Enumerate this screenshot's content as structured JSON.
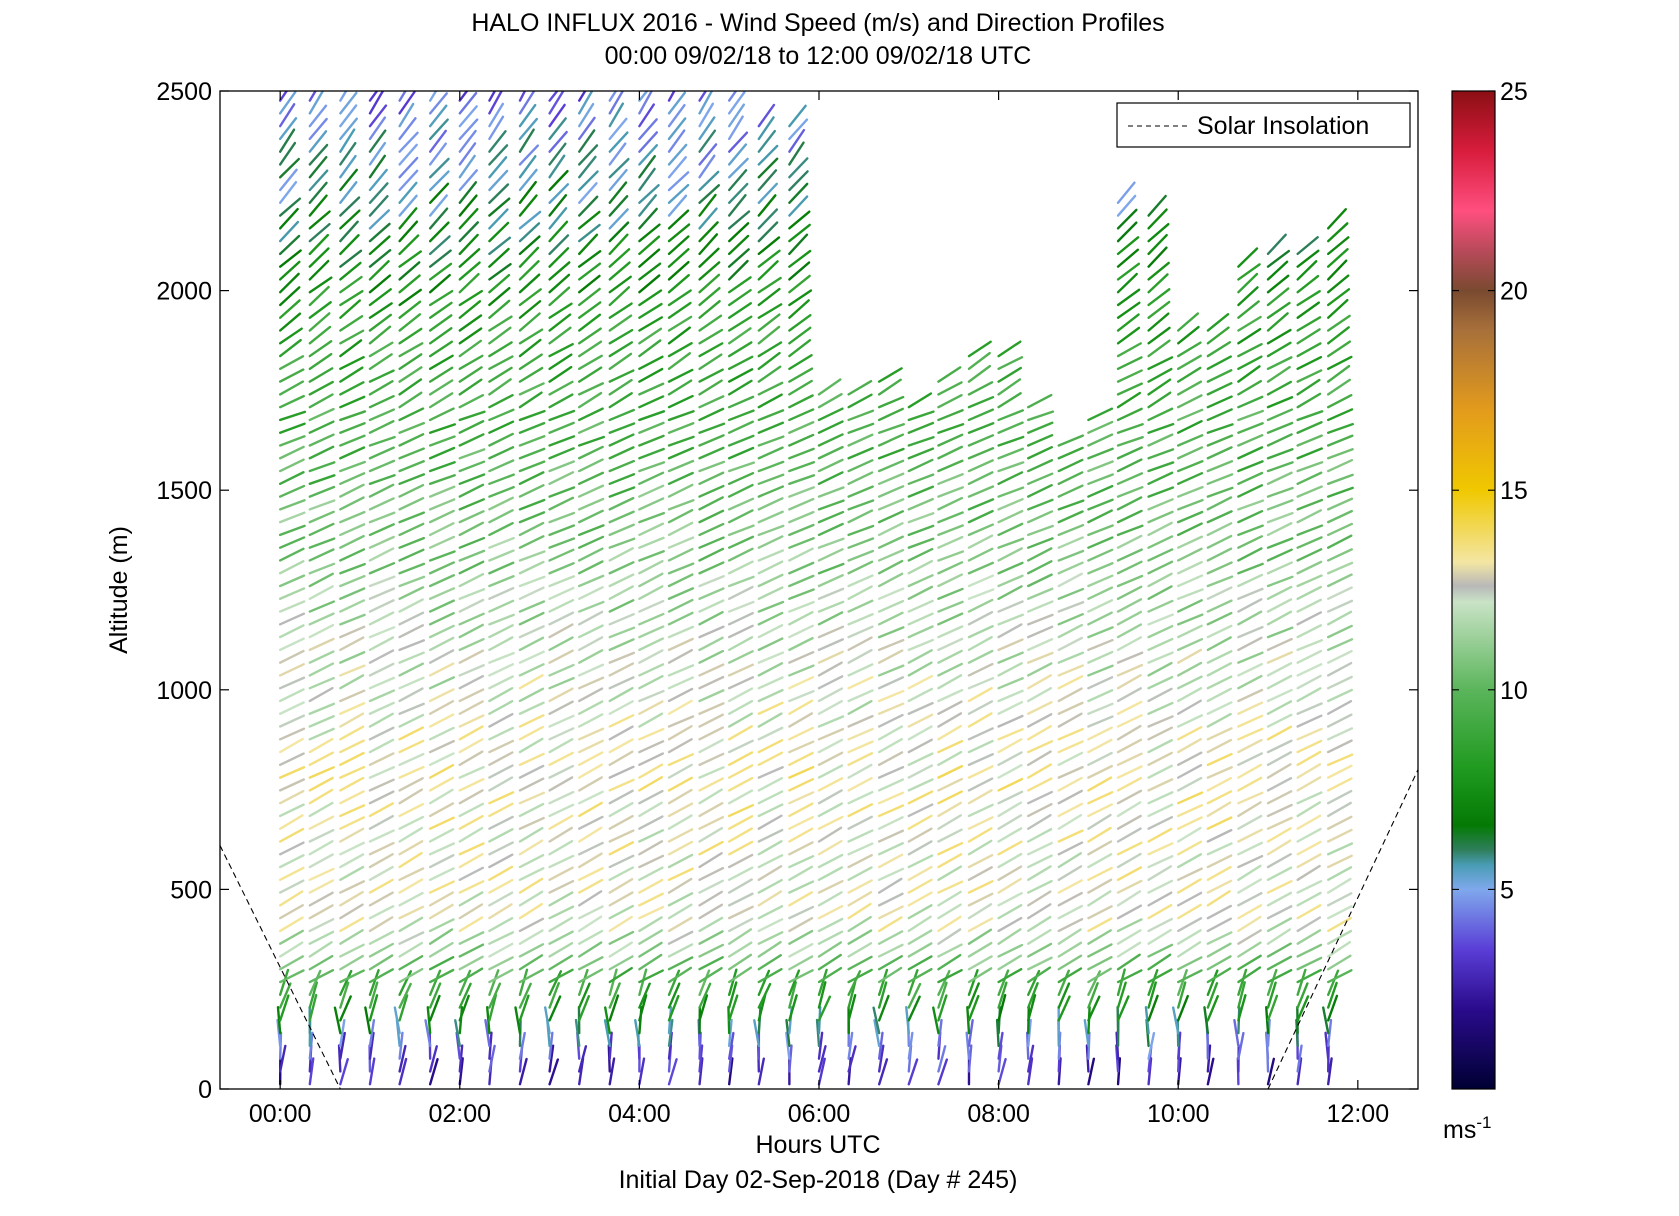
{
  "chart_data": {
    "type": "barb-profile",
    "title": "HALO INFLUX 2016 - Wind Speed (m/s) and Direction Profiles",
    "subtitle": "00:00 09/02/18 to 12:00 09/02/18  UTC",
    "xlabel": "Hours UTC",
    "caption": "Initial Day 02-Sep-2018 (Day # 245)",
    "ylabel": "Altitude (m)",
    "xlim": [
      -0.67,
      12.67
    ],
    "ylim": [
      0,
      2500
    ],
    "x_ticks": [
      0,
      2,
      4,
      6,
      8,
      10,
      12
    ],
    "x_tick_labels": [
      "00:00",
      "02:00",
      "04:00",
      "06:00",
      "08:00",
      "10:00",
      "12:00"
    ],
    "y_ticks": [
      0,
      500,
      1000,
      1500,
      2000,
      2500
    ],
    "y_tick_labels": [
      "0",
      "500",
      "1000",
      "1500",
      "2000",
      "2500"
    ],
    "legend": {
      "label": "Solar Insolation",
      "position": "top-right",
      "line_style": "dashed",
      "color": "#000000"
    },
    "colorbar": {
      "range": [
        0,
        25
      ],
      "ticks": [
        5,
        10,
        15,
        20,
        25
      ],
      "tick_labels": [
        "5",
        "10",
        "15",
        "20",
        "25"
      ],
      "unit_label": "ms",
      "unit_exponent": "-1",
      "stops": [
        {
          "value": 0,
          "color": "#000033"
        },
        {
          "value": 2,
          "color": "#2a0b8c"
        },
        {
          "value": 3.5,
          "color": "#5a3ed6"
        },
        {
          "value": 5,
          "color": "#7fa8ec"
        },
        {
          "value": 5.6,
          "color": "#4a9db6"
        },
        {
          "value": 6,
          "color": "#2e7e5a"
        },
        {
          "value": 6.6,
          "color": "#047a04"
        },
        {
          "value": 8,
          "color": "#1f9a1f"
        },
        {
          "value": 10,
          "color": "#5bb55b"
        },
        {
          "value": 12.2,
          "color": "#c9e3c6"
        },
        {
          "value": 12.6,
          "color": "#b8b8b8"
        },
        {
          "value": 13.2,
          "color": "#f4e6a3"
        },
        {
          "value": 15,
          "color": "#f0c800"
        },
        {
          "value": 17,
          "color": "#e39b1c"
        },
        {
          "value": 19,
          "color": "#a8703a"
        },
        {
          "value": 20,
          "color": "#7a4a30"
        },
        {
          "value": 21,
          "color": "#b84a5a"
        },
        {
          "value": 22,
          "color": "#ff4f7f"
        },
        {
          "value": 23.5,
          "color": "#d81c3c"
        },
        {
          "value": 25,
          "color": "#8b0f14"
        }
      ]
    },
    "solar_insolation": [
      {
        "x": -0.67,
        "y": 610
      },
      {
        "x": 0.67,
        "y": 0
      },
      {
        "x": 11.0,
        "y": 0
      },
      {
        "x": 12.67,
        "y": 800
      }
    ],
    "profile_times_hours": [
      0,
      0.33,
      0.67,
      1.0,
      1.33,
      1.67,
      2.0,
      2.33,
      2.67,
      3.0,
      3.33,
      3.67,
      4.0,
      4.33,
      4.67,
      5.0,
      5.33,
      5.67,
      6.0,
      6.33,
      6.67,
      7.0,
      7.33,
      7.67,
      8.0,
      8.33,
      8.67,
      9.0,
      9.33,
      9.67,
      10.0,
      10.33,
      10.67,
      11.0,
      11.33,
      11.67
    ],
    "profile_top_altitudes_m": [
      2480,
      2480,
      2480,
      2480,
      2480,
      2480,
      2480,
      2480,
      2480,
      2480,
      2480,
      2480,
      2480,
      2480,
      2480,
      2480,
      2440,
      2440,
      1770,
      1770,
      1780,
      1720,
      1780,
      1850,
      1860,
      1710,
      1640,
      1700,
      2230,
      2200,
      1910,
      1900,
      2090,
      2100,
      2110,
      2180
    ],
    "speed_profile_m_s": [
      {
        "z": 0,
        "speed": 2.5
      },
      {
        "z": 80,
        "speed": 4.0
      },
      {
        "z": 180,
        "speed": 8.0
      },
      {
        "z": 400,
        "speed": 12.5
      },
      {
        "z": 800,
        "speed": 13.0
      },
      {
        "z": 1200,
        "speed": 11.5
      },
      {
        "z": 1600,
        "speed": 9.5
      },
      {
        "z": 1900,
        "speed": 8.5
      },
      {
        "z": 2200,
        "speed": 6.0
      },
      {
        "z": 2500,
        "speed": 4.0
      }
    ]
  }
}
